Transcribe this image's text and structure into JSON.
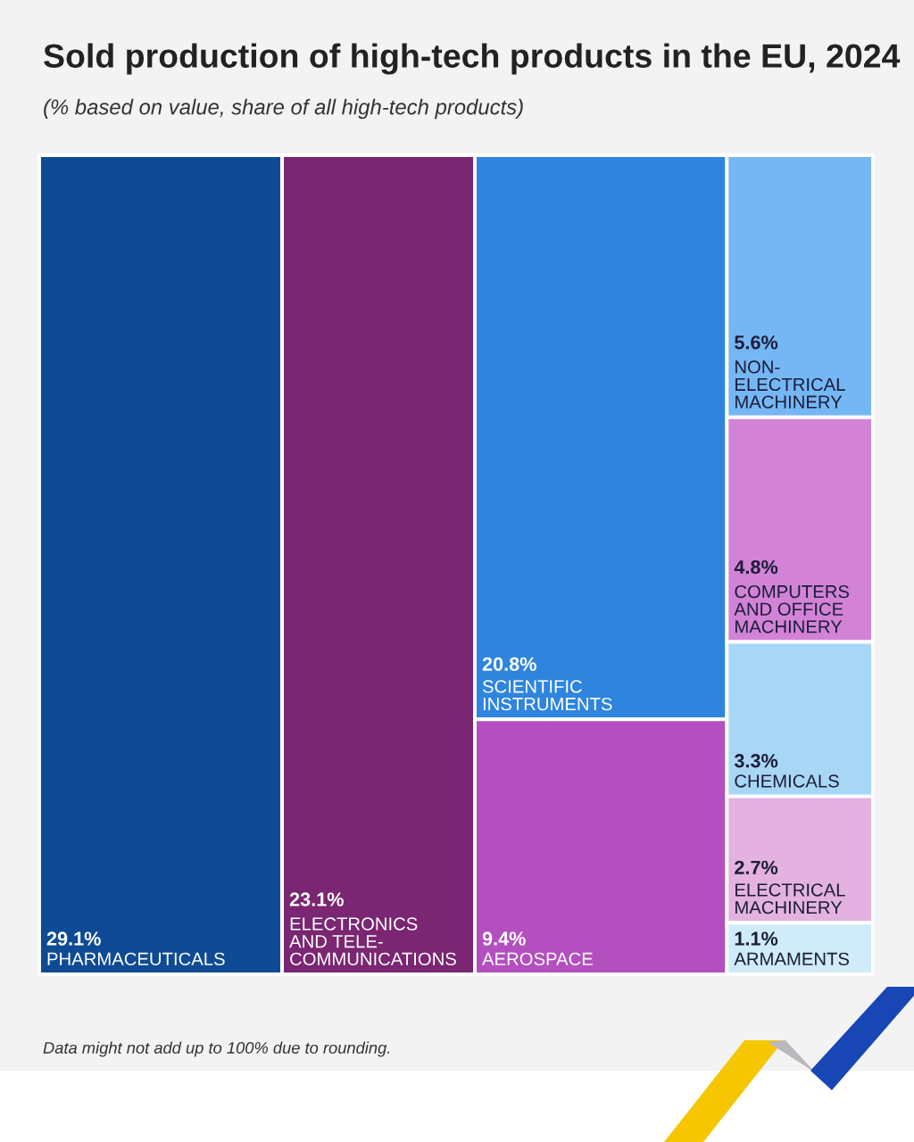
{
  "chart_data": {
    "type": "other",
    "title": "Sold production of high-tech products in the EU, 2024",
    "subtitle": "(% based on value, share of all high-tech products)",
    "categories": [
      "PHARMACEUTICALS",
      "ELECTRONICS\nAND TELE-\nCOMMUNICATIONS",
      "SCIENTIFIC\nINSTRUMENTS",
      "AEROSPACE",
      "NON-\nELECTRICAL\nMACHINERY",
      "COMPUTERS\nAND OFFICE\nMACHINERY",
      "CHEMICALS",
      "ELECTRICAL\nMACHINERY",
      "ARMAMENTS"
    ],
    "values": [
      29.1,
      23.1,
      20.8,
      9.4,
      5.6,
      4.8,
      3.3,
      2.7,
      1.1
    ],
    "value_labels": [
      "29.1%",
      "23.1%",
      "20.8%",
      "9.4%",
      "5.6%",
      "4.8%",
      "3.3%",
      "2.7%",
      "1.1%"
    ],
    "colors": [
      "#0f4b95",
      "#7a2672",
      "#2f85dd",
      "#b34fbf",
      "#75b7f4",
      "#d283d6",
      "#a8d7f6",
      "#e3b2e0",
      "#d0ebfa"
    ],
    "annotations": [
      "Data might not add up to 100% due to rounding."
    ]
  }
}
